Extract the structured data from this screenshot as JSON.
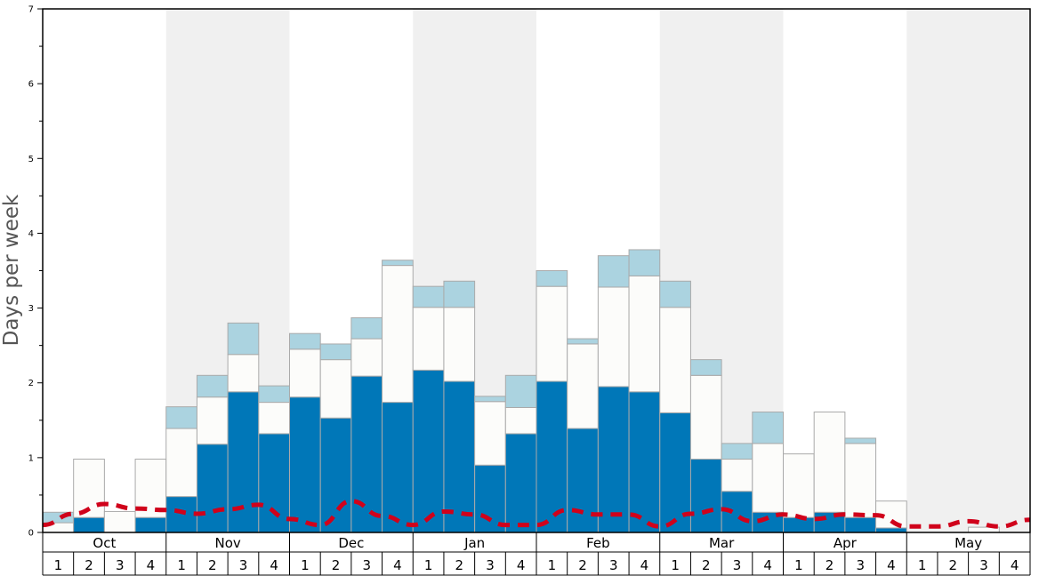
{
  "chart_data": {
    "type": "bar",
    "title": "",
    "ylabel": "Days per week",
    "xlabel": "",
    "ylim": [
      0,
      7
    ],
    "y_ticks": [
      0,
      1,
      2,
      3,
      4,
      5,
      6,
      7
    ],
    "months": [
      "Oct",
      "Nov",
      "Dec",
      "Jan",
      "Feb",
      "Mar",
      "Apr",
      "May"
    ],
    "week_labels": [
      "1",
      "2",
      "3",
      "4"
    ],
    "stacked": true,
    "series": [
      {
        "color": "#0077b8",
        "values": [
          0.0,
          0.2,
          0.0,
          0.2,
          0.48,
          1.18,
          1.88,
          1.32,
          1.81,
          1.53,
          2.09,
          1.74,
          2.17,
          2.02,
          0.9,
          1.32,
          2.02,
          1.39,
          1.95,
          1.88,
          1.6,
          0.98,
          0.55,
          0.27,
          0.2,
          0.27,
          0.2,
          0.06,
          0.0,
          0.0,
          0.0,
          0.0
        ]
      },
      {
        "color": "#fcfcfa",
        "values": [
          0.13,
          0.78,
          0.28,
          0.78,
          0.91,
          0.63,
          0.5,
          0.42,
          0.64,
          0.78,
          0.5,
          1.83,
          0.84,
          0.99,
          0.85,
          0.35,
          1.27,
          1.13,
          1.33,
          1.55,
          1.41,
          1.12,
          0.43,
          0.92,
          0.85,
          1.34,
          0.99,
          0.36,
          0.0,
          0.0,
          0.07,
          0.0
        ]
      },
      {
        "color": "#abd3e0",
        "values": [
          0.14,
          0.0,
          0.0,
          0.0,
          0.29,
          0.29,
          0.42,
          0.22,
          0.21,
          0.21,
          0.28,
          0.07,
          0.28,
          0.35,
          0.07,
          0.43,
          0.21,
          0.07,
          0.42,
          0.35,
          0.35,
          0.21,
          0.21,
          0.42,
          0.0,
          0.0,
          0.07,
          0.0,
          0.0,
          0.0,
          0.0,
          0.0
        ]
      }
    ],
    "line": {
      "color": "#d0021b",
      "style": "dashed",
      "values": [
        0.1,
        0.25,
        0.38,
        0.32,
        0.3,
        0.25,
        0.31,
        0.37,
        0.18,
        0.1,
        0.42,
        0.22,
        0.1,
        0.28,
        0.24,
        0.1,
        0.1,
        0.3,
        0.24,
        0.24,
        0.08,
        0.25,
        0.31,
        0.15,
        0.24,
        0.18,
        0.24,
        0.23,
        0.08,
        0.08,
        0.15,
        0.08,
        0.17
      ]
    },
    "shaded_months": [
      "Nov",
      "Jan",
      "Mar",
      "May"
    ],
    "grid": false
  }
}
